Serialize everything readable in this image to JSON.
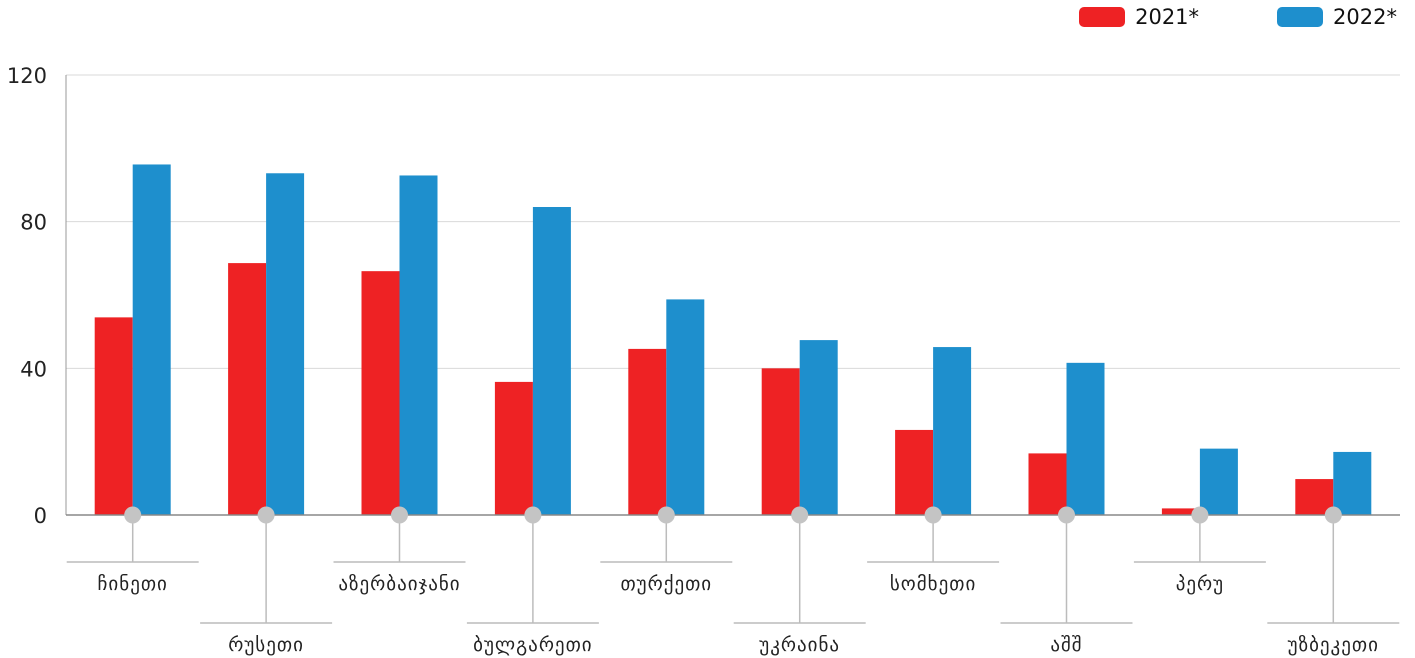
{
  "legend": {
    "items": [
      {
        "label": "2021*",
        "color": "#ee2224"
      },
      {
        "label": "2022*",
        "color": "#1e8fcd"
      }
    ]
  },
  "chart_data": {
    "type": "bar",
    "categories": [
      "ჩინეთი",
      "რუსეთი",
      "აზერბაიჯანი",
      "ბულგარეთი",
      "თურქეთი",
      "უკრაინა",
      "სომხეთი",
      "აშშ",
      "პერუ",
      "უზბეკეთი"
    ],
    "series": [
      {
        "name": "2021*",
        "color": "#ee2224",
        "values": [
          53.9,
          68.7,
          66.5,
          36.3,
          45.3,
          40.0,
          23.2,
          16.8,
          1.8,
          9.8
        ]
      },
      {
        "name": "2022*",
        "color": "#1e8fcd",
        "values": [
          95.6,
          93.2,
          92.6,
          84.0,
          58.8,
          47.7,
          45.8,
          41.5,
          18.1,
          17.2
        ]
      }
    ],
    "yticks": [
      0,
      40,
      80,
      120
    ],
    "ylim": [
      0,
      120
    ],
    "grid": true,
    "legend_position": "top-right"
  }
}
